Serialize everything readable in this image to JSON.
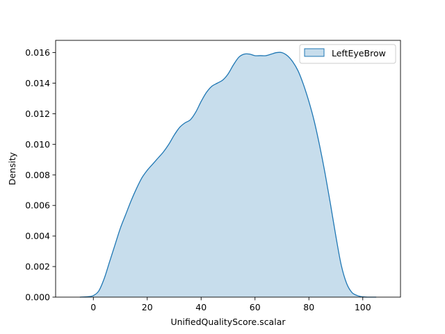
{
  "chart_data": {
    "type": "area",
    "title": "",
    "xlabel": "UnifiedQualityScore.scalar",
    "ylabel": "Density",
    "xlim": [
      -14,
      114
    ],
    "ylim": [
      0,
      0.0168
    ],
    "xticks": [
      0,
      20,
      40,
      60,
      80,
      100
    ],
    "yticks": [
      0.0,
      0.002,
      0.004,
      0.006,
      0.008,
      0.01,
      0.012,
      0.014,
      0.016
    ],
    "xtick_labels": [
      "0",
      "20",
      "40",
      "60",
      "80",
      "100"
    ],
    "ytick_labels": [
      "0.000",
      "0.002",
      "0.004",
      "0.006",
      "0.008",
      "0.010",
      "0.012",
      "0.014",
      "0.016"
    ],
    "grid": false,
    "legend_position": "top-right",
    "series": [
      {
        "name": "LeftEyeBrow",
        "color": "#1f77b4",
        "fill_color": "#1f77b4",
        "fill_opacity": 0.25,
        "x": [
          -5,
          -2,
          0,
          2,
          4,
          6,
          8,
          10,
          12,
          14,
          16,
          18,
          20,
          22,
          24,
          26,
          28,
          30,
          32,
          34,
          36,
          38,
          40,
          42,
          44,
          46,
          48,
          50,
          52,
          54,
          56,
          58,
          60,
          62,
          64,
          66,
          68,
          70,
          72,
          74,
          76,
          78,
          80,
          82,
          84,
          86,
          88,
          90,
          92,
          94,
          96,
          98,
          100,
          102,
          105
        ],
        "y": [
          0.0,
          3e-05,
          0.0001,
          0.0004,
          0.0012,
          0.0023,
          0.0034,
          0.0045,
          0.0054,
          0.0063,
          0.0071,
          0.0078,
          0.0083,
          0.0087,
          0.0091,
          0.0095,
          0.01,
          0.0106,
          0.0111,
          0.0114,
          0.0116,
          0.0121,
          0.0128,
          0.0134,
          0.0138,
          0.014,
          0.0142,
          0.0146,
          0.0152,
          0.0157,
          0.0159,
          0.0159,
          0.0158,
          0.0158,
          0.0158,
          0.0159,
          0.016,
          0.016,
          0.0158,
          0.0154,
          0.0148,
          0.0139,
          0.0128,
          0.0115,
          0.0099,
          0.0081,
          0.0061,
          0.004,
          0.0021,
          0.0009,
          0.0003,
          0.0001,
          2e-05,
          0.0,
          0.0
        ]
      }
    ]
  }
}
